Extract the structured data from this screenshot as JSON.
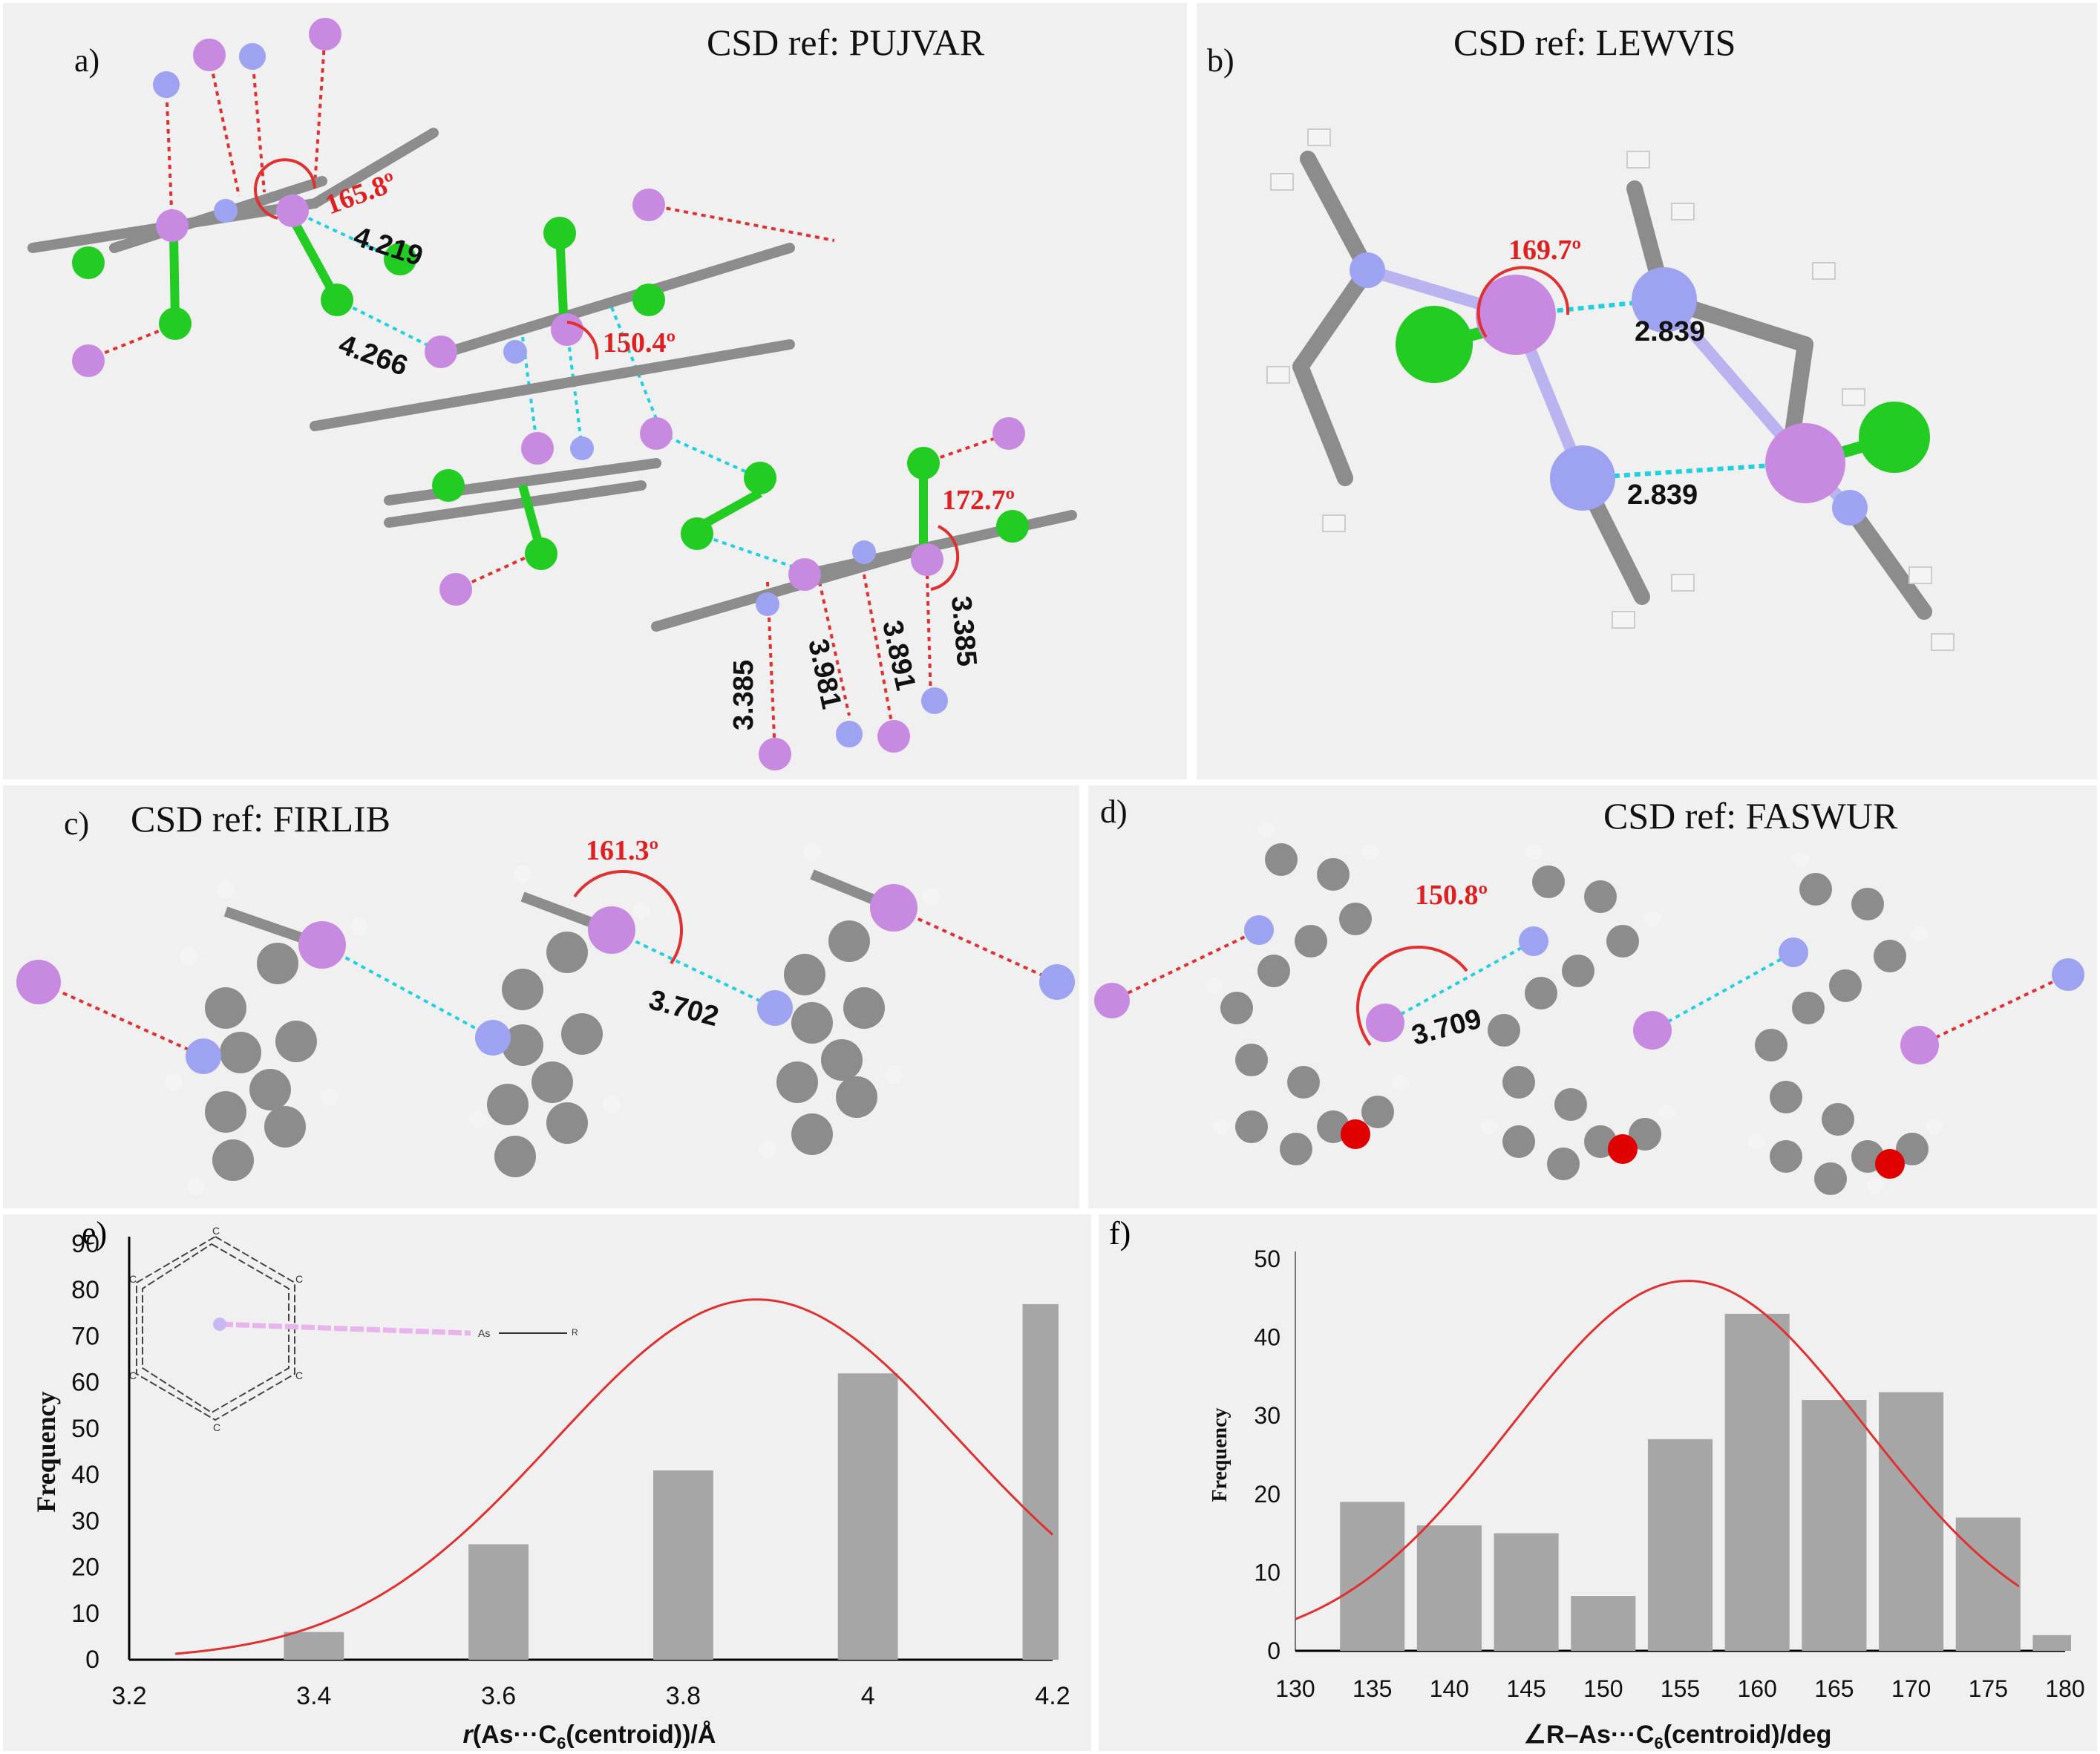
{
  "panels": {
    "a": {
      "letter": "a)",
      "ref": "CSD ref: PUJVAR",
      "distances": [
        "4.219",
        "4.266",
        "3.385",
        "3.981",
        "3.891",
        "3.385"
      ],
      "angles": [
        "165.8º",
        "150.4º",
        "172.7º"
      ]
    },
    "b": {
      "letter": "b)",
      "ref": "CSD ref: LEWVIS",
      "distances": [
        "2.839",
        "2.839"
      ],
      "angles": [
        "169.7º"
      ]
    },
    "c": {
      "letter": "c)",
      "ref": "CSD ref: FIRLIB",
      "distances": [
        "3.702"
      ],
      "angles": [
        "161.3º"
      ]
    },
    "d": {
      "letter": "d)",
      "ref": "CSD ref: FASWUR",
      "distances": [
        "3.709"
      ],
      "angles": [
        "150.8º"
      ]
    },
    "e": {
      "letter": "e)"
    },
    "f": {
      "letter": "f)"
    }
  },
  "inset": {
    "atom_c": "C",
    "atom_as": "As",
    "atom_r": "R"
  },
  "colors": {
    "arsenic": "#c88ae0",
    "nitrogen": "#9da3f0",
    "chlorine": "#22cc22",
    "oxygen": "#e00000",
    "carbon": "#8c8c8c",
    "hydrogen": "#f4f4f4",
    "bar": "#a6a6a6",
    "curve": "#e03030",
    "contact_cyan": "#20d0e0",
    "contact_red": "#e03030"
  },
  "chart_data": [
    {
      "type": "bar",
      "id": "e",
      "xlabel_parts": [
        "r",
        "(As···C",
        "6",
        "(centroid))/Å"
      ],
      "ylabel": "Frequency",
      "xticks": [
        "3.2",
        "3.4",
        "3.6",
        "3.8",
        "4",
        "4.2"
      ],
      "yticks": [
        "0",
        "10",
        "20",
        "30",
        "40",
        "50",
        "60",
        "70",
        "80",
        "90"
      ],
      "xlim": [
        3.2,
        4.2
      ],
      "ylim": [
        0,
        90
      ],
      "bars": [
        {
          "x": 3.4,
          "value": 6
        },
        {
          "x": 3.6,
          "value": 25
        },
        {
          "x": 3.8,
          "value": 41
        },
        {
          "x": 4.0,
          "value": 62
        },
        {
          "x": 4.2,
          "value": 77
        }
      ],
      "bar_width": 0.065,
      "curve": {
        "mean": 3.88,
        "sd": 0.22,
        "peak": 78,
        "from": 3.25,
        "to": 4.2
      }
    },
    {
      "type": "bar",
      "id": "f",
      "xlabel_parts": [
        "∠R–As···C",
        "6",
        "(centroid)/deg"
      ],
      "ylabel": "Frequency",
      "xticks": [
        "130",
        "135",
        "140",
        "145",
        "150",
        "155",
        "160",
        "165",
        "170",
        "175",
        "180"
      ],
      "yticks": [
        "0",
        "10",
        "20",
        "30",
        "40",
        "50"
      ],
      "xlim": [
        130,
        180
      ],
      "ylim": [
        0,
        50
      ],
      "bars": [
        {
          "x": 135,
          "value": 19
        },
        {
          "x": 140,
          "value": 16
        },
        {
          "x": 145,
          "value": 15
        },
        {
          "x": 150,
          "value": 7
        },
        {
          "x": 155,
          "value": 27
        },
        {
          "x": 160,
          "value": 43
        },
        {
          "x": 165,
          "value": 32
        },
        {
          "x": 170,
          "value": 33
        },
        {
          "x": 175,
          "value": 17
        },
        {
          "x": 180,
          "value": 2
        }
      ],
      "bar_width": 4.2,
      "curve": {
        "mean": 155.5,
        "sd": 11.5,
        "peak": 47.2,
        "from": 130,
        "to": 177
      }
    }
  ]
}
